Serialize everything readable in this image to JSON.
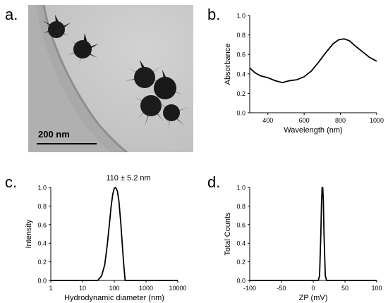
{
  "panels": {
    "a": {
      "letter": "a.",
      "scale_label": "200 nm"
    },
    "b": {
      "letter": "b."
    },
    "c": {
      "letter": "c."
    },
    "d": {
      "letter": "d."
    }
  },
  "colors": {
    "line": "#000000",
    "tem_background": "#c9c9c9",
    "particle": "#1c1c1c"
  },
  "chart_data": [
    {
      "panel": "b",
      "type": "line",
      "title": "",
      "xlabel": "Wavelength (nm)",
      "ylabel": "Absorbance",
      "xlim": [
        300,
        1000
      ],
      "ylim": [
        0,
        1.0
      ],
      "xticks": [
        400,
        600,
        800,
        1000
      ],
      "yticks": [
        0.0,
        0.2,
        0.4,
        0.6,
        0.8,
        1.0
      ],
      "xtick_labels": [
        "400",
        "600",
        "800",
        "1000"
      ],
      "ytick_labels": [
        "0.0",
        "0.2",
        "0.4",
        "0.6",
        "0.8",
        "1.0"
      ],
      "grid": false,
      "x_scale": "linear",
      "series": [
        {
          "x": [
            300,
            330,
            360,
            400,
            440,
            480,
            500,
            520,
            560,
            600,
            640,
            680,
            720,
            760,
            790,
            820,
            850,
            880,
            920,
            960,
            1000
          ],
          "y": [
            0.46,
            0.41,
            0.38,
            0.36,
            0.33,
            0.31,
            0.32,
            0.33,
            0.34,
            0.37,
            0.43,
            0.52,
            0.62,
            0.71,
            0.75,
            0.76,
            0.74,
            0.69,
            0.63,
            0.57,
            0.53
          ]
        }
      ]
    },
    {
      "panel": "c",
      "type": "line",
      "title": "110 ± 5.2 nm",
      "xlabel": "Hydrodynamic diameter (nm)",
      "ylabel": "Intensity",
      "xlim": [
        1,
        10000
      ],
      "ylim": [
        0,
        1.0
      ],
      "xticks": [
        1,
        10,
        100,
        1000,
        10000
      ],
      "yticks": [
        0.0,
        0.2,
        0.4,
        0.6,
        0.8,
        1.0
      ],
      "xtick_labels": [
        "1",
        "10",
        "100",
        "1000",
        "10000"
      ],
      "ytick_labels": [
        "0.0",
        "0.2",
        "0.4",
        "0.6",
        "0.8",
        "1.0"
      ],
      "grid": false,
      "x_scale": "log",
      "series": [
        {
          "x": [
            1,
            30,
            40,
            50,
            60,
            70,
            80,
            90,
            100,
            110,
            125,
            140,
            160,
            180,
            200,
            220,
            10000
          ],
          "y": [
            0,
            0,
            0.05,
            0.17,
            0.38,
            0.6,
            0.8,
            0.93,
            0.99,
            1.0,
            0.96,
            0.85,
            0.62,
            0.37,
            0.16,
            0,
            0
          ]
        }
      ]
    },
    {
      "panel": "d",
      "type": "line",
      "title": "",
      "xlabel": "ZP (mV)",
      "ylabel": "Total Counts",
      "xlim": [
        -100,
        100
      ],
      "ylim": [
        0,
        1.0
      ],
      "xticks": [
        -100,
        -50,
        0,
        50,
        100
      ],
      "yticks": [
        0.0,
        0.2,
        0.4,
        0.6,
        0.8,
        1.0
      ],
      "xtick_labels": [
        "-100",
        "-50",
        "0",
        "50",
        "100"
      ],
      "ytick_labels": [
        "0.0",
        "0.2",
        "0.4",
        "0.6",
        "0.8",
        "1.0"
      ],
      "grid": false,
      "x_scale": "linear",
      "series": [
        {
          "x": [
            -100,
            8,
            10,
            12,
            13,
            14,
            15,
            16,
            17,
            19,
            21,
            100
          ],
          "y": [
            0,
            0,
            0.05,
            0.5,
            0.82,
            1.0,
            1.0,
            0.84,
            0.5,
            0.05,
            0,
            0
          ]
        }
      ]
    }
  ]
}
